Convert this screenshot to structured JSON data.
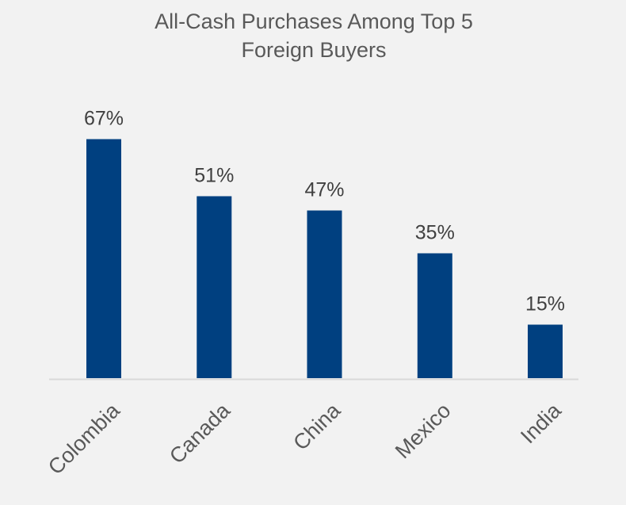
{
  "chart_data": {
    "type": "bar",
    "title": "All-Cash Purchases Among Top 5 Foreign Buyers",
    "title_lines": [
      "All-Cash Purchases Among Top 5",
      "Foreign Buyers"
    ],
    "categories": [
      "Colombia",
      "Canada",
      "China",
      "Mexico",
      "India"
    ],
    "values": [
      67,
      51,
      47,
      35,
      15
    ],
    "data_labels": [
      "67%",
      "51%",
      "47%",
      "35%",
      "15%"
    ],
    "unit": "%",
    "ylim": [
      0,
      100
    ],
    "grid": false,
    "legend": "none",
    "bar_color": "#004080",
    "axis_color": "#d9d9d9",
    "background": "#f2f2f2"
  }
}
